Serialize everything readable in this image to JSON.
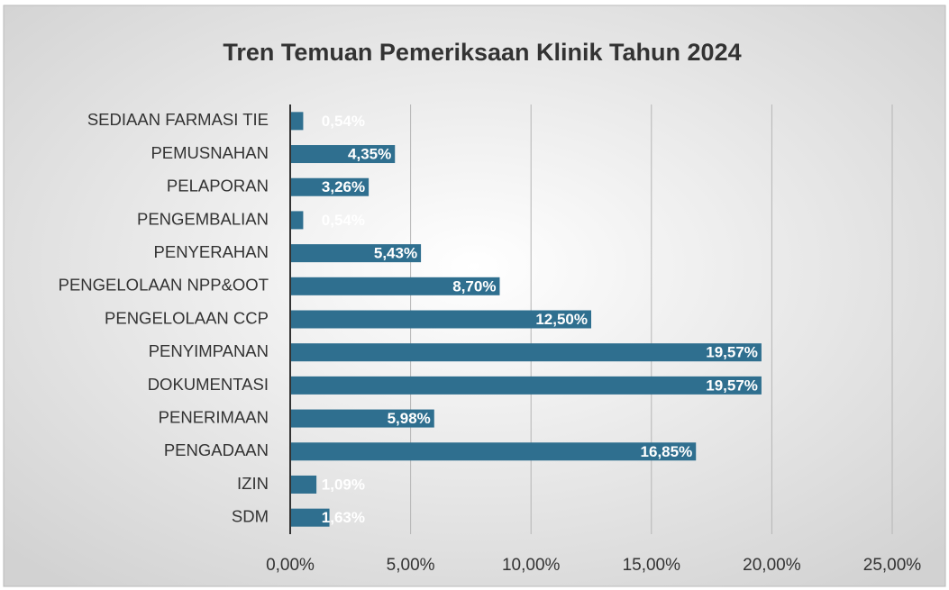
{
  "chart_data": {
    "type": "bar",
    "orientation": "horizontal",
    "title": "Tren Temuan Pemeriksaan Klinik Tahun 2024",
    "categories": [
      "SEDIAAN FARMASI TIE",
      "PEMUSNAHAN",
      "PELAPORAN",
      "PENGEMBALIAN",
      "PENYERAHAN",
      "PENGELOLAAN NPP&OOT",
      "PENGELOLAAN CCP",
      "PENYIMPANAN",
      "DOKUMENTASI",
      "PENERIMAAN",
      "PENGADAAN",
      "IZIN",
      "SDM"
    ],
    "values": [
      0.54,
      4.35,
      3.26,
      0.54,
      5.43,
      8.7,
      12.5,
      19.57,
      19.57,
      5.98,
      16.85,
      1.09,
      1.63
    ],
    "value_labels": [
      "0,54%",
      "4,35%",
      "3,26%",
      "0,54%",
      "5,43%",
      "8,70%",
      "12,50%",
      "19,57%",
      "19,57%",
      "5,98%",
      "16,85%",
      "1,09%",
      "1,63%"
    ],
    "color": "#2f6f8f",
    "xlim": [
      0,
      25
    ],
    "xticks": [
      {
        "value": 0,
        "label": "0,00%"
      },
      {
        "value": 5,
        "label": "5,00%"
      },
      {
        "value": 10,
        "label": "10,00%"
      },
      {
        "value": 15,
        "label": "15,00%"
      },
      {
        "value": 20,
        "label": "20,00%"
      },
      {
        "value": 25,
        "label": "25,00%"
      }
    ],
    "grid": true
  }
}
